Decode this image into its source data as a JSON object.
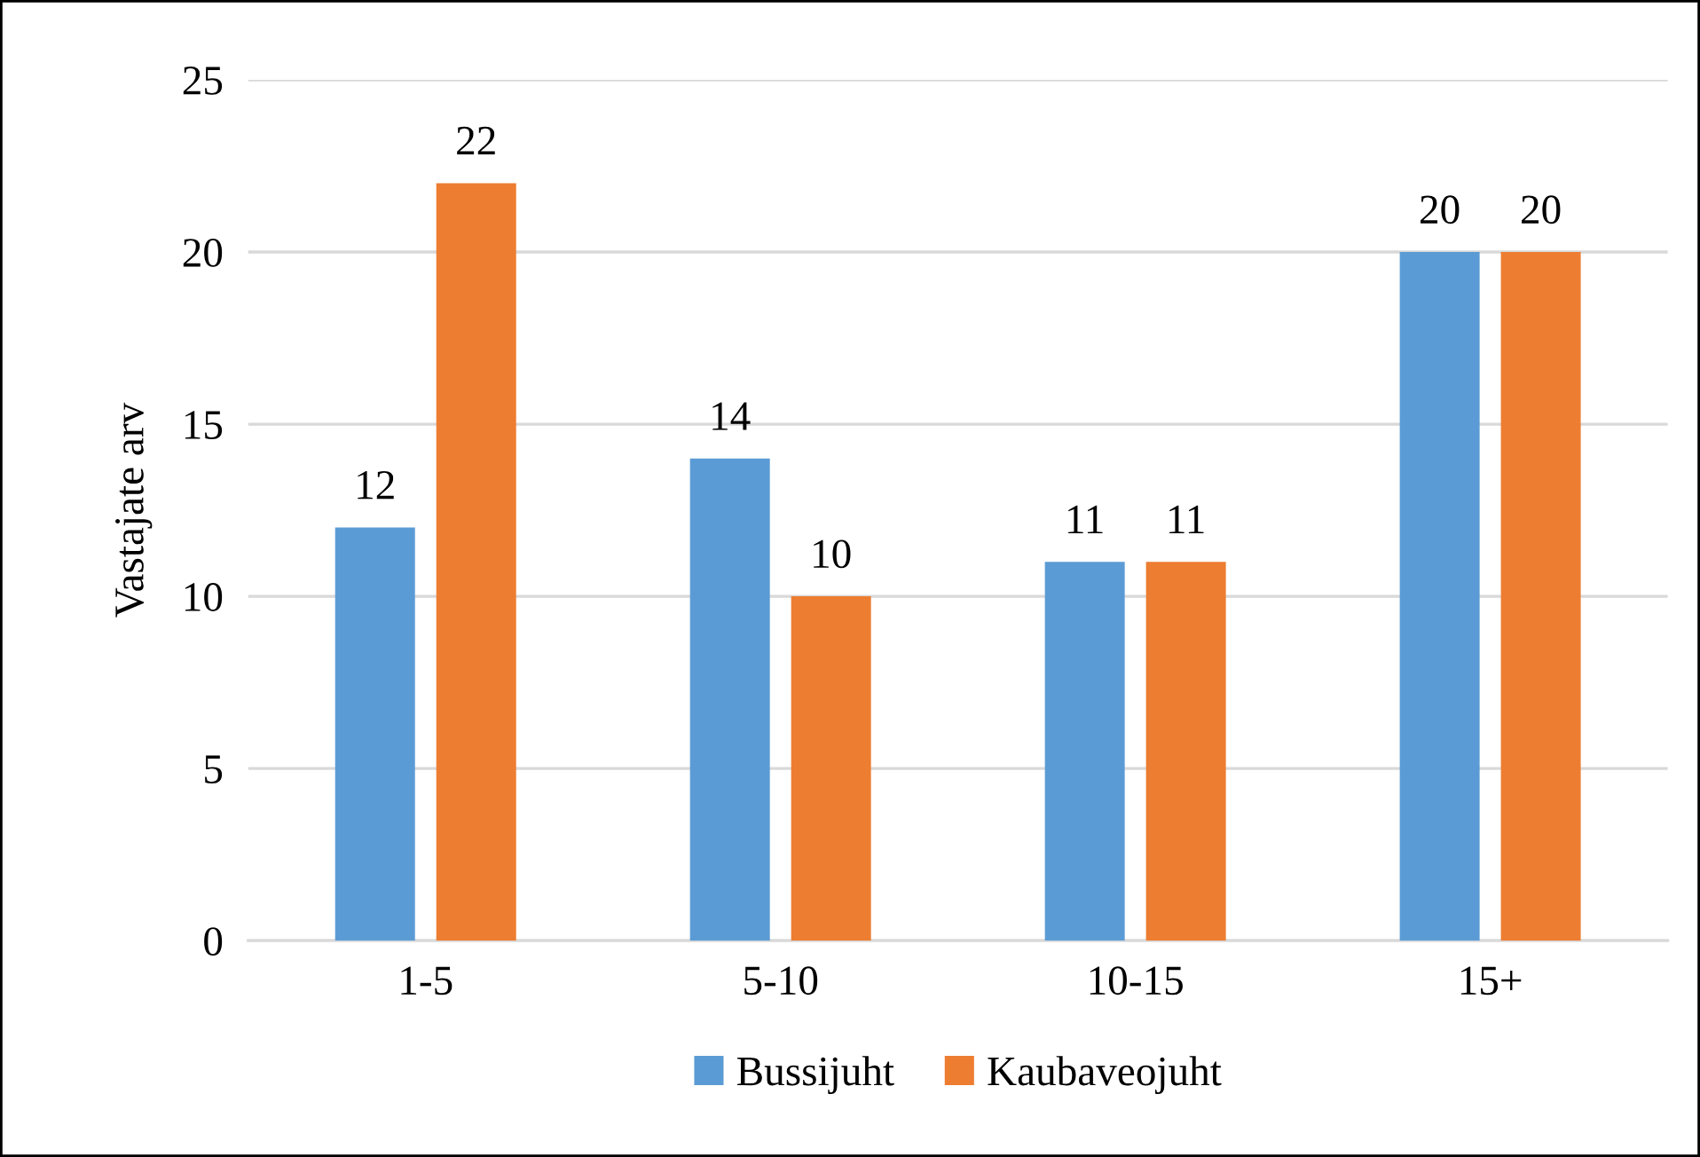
{
  "chart_data": {
    "type": "bar",
    "ylabel": "Vastajate arv",
    "categories": [
      "1-5",
      "5-10",
      "10-15",
      "15+"
    ],
    "series": [
      {
        "name": "Bussijuht",
        "color": "#5b9bd5",
        "values": [
          12,
          14,
          11,
          20
        ]
      },
      {
        "name": "Kaubaveojuht",
        "color": "#ed7d31",
        "values": [
          22,
          10,
          11,
          20
        ]
      }
    ],
    "ylim": [
      0,
      25
    ],
    "yticks": [
      0,
      5,
      10,
      15,
      20,
      25
    ],
    "grid": "y",
    "legend": "bottom",
    "data_labels": true
  }
}
